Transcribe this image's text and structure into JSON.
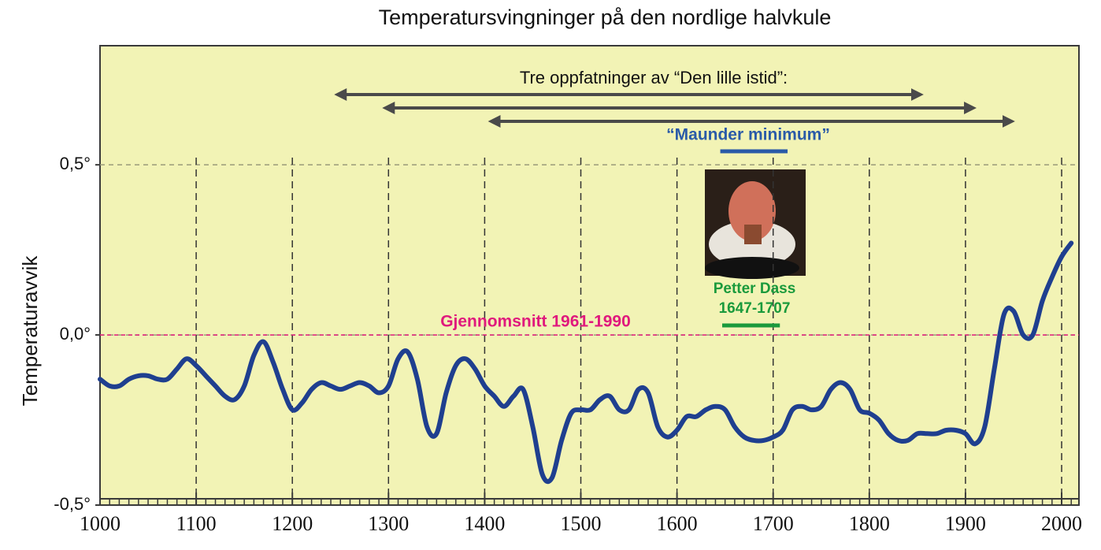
{
  "chart_data": {
    "type": "line",
    "title": "Temperatursvingninger på den nordlige halvkule",
    "ylabel": "Temperaturavvik",
    "x": [
      1000,
      1010,
      1020,
      1030,
      1040,
      1050,
      1060,
      1070,
      1080,
      1090,
      1100,
      1110,
      1120,
      1130,
      1140,
      1150,
      1160,
      1170,
      1180,
      1190,
      1200,
      1210,
      1220,
      1230,
      1240,
      1250,
      1260,
      1270,
      1280,
      1290,
      1300,
      1310,
      1320,
      1330,
      1340,
      1350,
      1360,
      1370,
      1380,
      1390,
      1400,
      1410,
      1420,
      1430,
      1440,
      1450,
      1460,
      1470,
      1480,
      1490,
      1500,
      1510,
      1520,
      1530,
      1540,
      1550,
      1560,
      1570,
      1580,
      1590,
      1600,
      1610,
      1620,
      1630,
      1640,
      1650,
      1660,
      1670,
      1680,
      1690,
      1700,
      1710,
      1720,
      1730,
      1740,
      1750,
      1760,
      1770,
      1780,
      1790,
      1800,
      1810,
      1820,
      1830,
      1840,
      1850,
      1860,
      1870,
      1880,
      1890,
      1900,
      1910,
      1920,
      1930,
      1940,
      1950,
      1960,
      1970,
      1980,
      1990,
      2000,
      2010
    ],
    "values": [
      -0.13,
      -0.15,
      -0.15,
      -0.13,
      -0.12,
      -0.12,
      -0.13,
      -0.13,
      -0.1,
      -0.07,
      -0.09,
      -0.12,
      -0.15,
      -0.18,
      -0.19,
      -0.15,
      -0.06,
      -0.02,
      -0.08,
      -0.16,
      -0.22,
      -0.2,
      -0.16,
      -0.14,
      -0.15,
      -0.16,
      -0.15,
      -0.14,
      -0.15,
      -0.17,
      -0.15,
      -0.07,
      -0.05,
      -0.13,
      -0.27,
      -0.29,
      -0.17,
      -0.09,
      -0.07,
      -0.1,
      -0.15,
      -0.18,
      -0.21,
      -0.18,
      -0.16,
      -0.27,
      -0.41,
      -0.42,
      -0.31,
      -0.23,
      -0.22,
      -0.22,
      -0.19,
      -0.18,
      -0.22,
      -0.22,
      -0.16,
      -0.17,
      -0.27,
      -0.3,
      -0.28,
      -0.24,
      -0.24,
      -0.22,
      -0.21,
      -0.22,
      -0.27,
      -0.3,
      -0.31,
      -0.31,
      -0.3,
      -0.28,
      -0.22,
      -0.21,
      -0.22,
      -0.21,
      -0.16,
      -0.14,
      -0.16,
      -0.22,
      -0.23,
      -0.25,
      -0.29,
      -0.31,
      -0.31,
      -0.29,
      -0.29,
      -0.29,
      -0.28,
      -0.28,
      -0.29,
      -0.32,
      -0.27,
      -0.1,
      0.06,
      0.07,
      0.0,
      0.0,
      0.1,
      0.17,
      0.23,
      0.27
    ],
    "color": "#1f3f8f",
    "xlim": [
      1000,
      2018
    ],
    "xticks": [
      1000,
      1100,
      1200,
      1300,
      1400,
      1500,
      1600,
      1700,
      1800,
      1900,
      2000
    ],
    "ylim": [
      -0.5,
      0.85
    ],
    "yticks": [
      {
        "value": -0.5,
        "label": "-0,5°"
      },
      {
        "value": 0,
        "label": "0,0°"
      },
      {
        "value": 0.5,
        "label": "0,5°"
      }
    ],
    "grid": true,
    "reference_line": {
      "label": "Gjennomsnitt 1961-1990",
      "value": 0,
      "color": "#e0197d"
    },
    "little_ice_age": {
      "label": "Tre oppfatninger av “Den lille istid”:",
      "spans": [
        [
          1250,
          1850
        ],
        [
          1300,
          1905
        ],
        [
          1410,
          1945
        ]
      ],
      "color": "#4a4a4a"
    },
    "maunder_minimum": {
      "label": "“Maunder minimum”",
      "span": [
        1645,
        1715
      ],
      "color": "#2a5aa8"
    },
    "petter_dass": {
      "label": "Petter Dass",
      "dates": "1647-1707",
      "span": [
        1647,
        1707
      ],
      "color": "#1a9a3c"
    }
  }
}
